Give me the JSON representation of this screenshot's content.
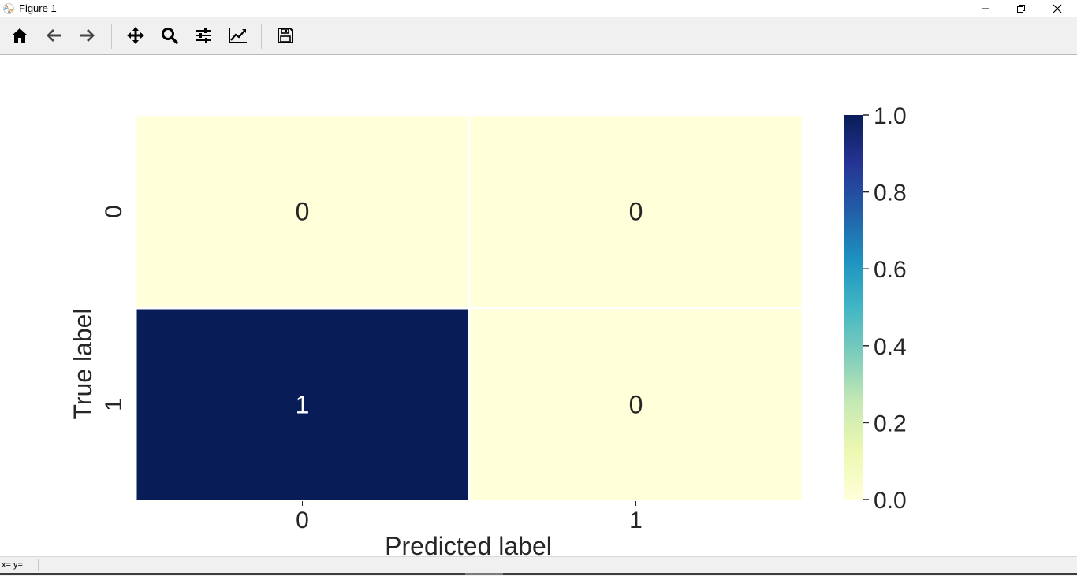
{
  "window": {
    "title": "Figure 1"
  },
  "toolbar": {
    "buttons": [
      {
        "name": "home",
        "icon": "home-icon"
      },
      {
        "name": "back",
        "icon": "arrow-left-icon"
      },
      {
        "name": "forward",
        "icon": "arrow-right-icon"
      },
      {
        "name": "pan",
        "icon": "move-icon"
      },
      {
        "name": "zoom",
        "icon": "magnifier-icon"
      },
      {
        "name": "configure-subplots",
        "icon": "sliders-icon"
      },
      {
        "name": "edit-axis",
        "icon": "line-chart-icon"
      },
      {
        "name": "save",
        "icon": "floppy-disk-icon"
      }
    ]
  },
  "status": {
    "coords": "x= y="
  },
  "colors": {
    "low": "#ffffd9",
    "high": "#081d58"
  },
  "chart_data": {
    "type": "heatmap",
    "xlabel": "Predicted label",
    "ylabel": "True label",
    "x_categories": [
      "0",
      "1"
    ],
    "y_categories": [
      "0",
      "1"
    ],
    "values": [
      [
        0,
        0
      ],
      [
        1,
        0
      ]
    ],
    "annotations": [
      [
        "0",
        "0"
      ],
      [
        "1",
        "0"
      ]
    ],
    "colorbar": {
      "min": 0.0,
      "max": 1.0,
      "ticks": [
        "0.0",
        "0.2",
        "0.4",
        "0.6",
        "0.8",
        "1.0"
      ],
      "colormap": "YlGnBu"
    }
  }
}
